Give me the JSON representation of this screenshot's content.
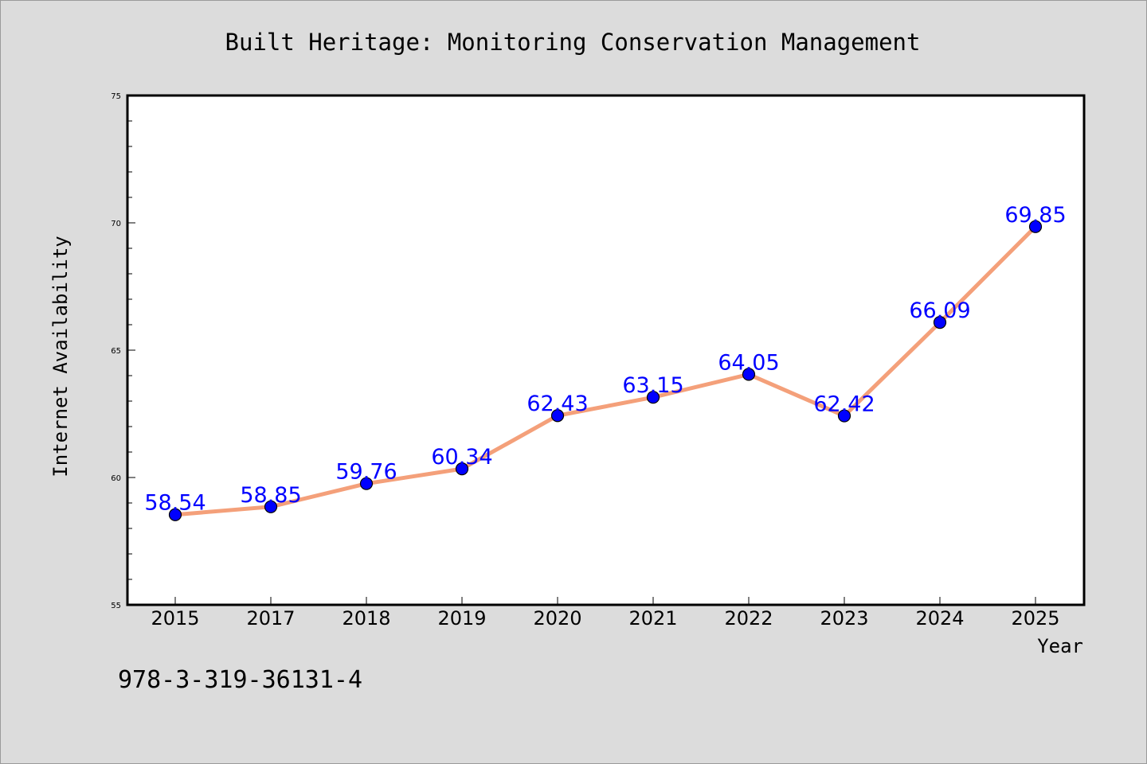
{
  "chart_data": {
    "type": "line",
    "title": "Built Heritage: Monitoring Conservation Management",
    "xlabel": "Year",
    "ylabel": "Internet Availability",
    "categories": [
      "2015",
      "2017",
      "2018",
      "2019",
      "2020",
      "2021",
      "2022",
      "2023",
      "2024",
      "2025"
    ],
    "values": [
      58.54,
      58.85,
      59.76,
      60.34,
      62.43,
      63.15,
      64.05,
      62.42,
      66.09,
      69.85
    ],
    "data_labels": [
      "58.54",
      "58.85",
      "59.76",
      "60.34",
      "62.43",
      "63.15",
      "64.05",
      "62.42",
      "66.09",
      "69.85"
    ],
    "ylim": [
      55,
      75
    ],
    "yticks": [
      55,
      60,
      65,
      70,
      75
    ],
    "grid": false,
    "colors": {
      "line": "#f4a07a",
      "marker": "#0000ff",
      "label": "#0000ff",
      "background": "#dcdcdc",
      "plot_background": "#ffffff"
    }
  },
  "footer": {
    "isbn": "978-3-319-36131-4"
  }
}
